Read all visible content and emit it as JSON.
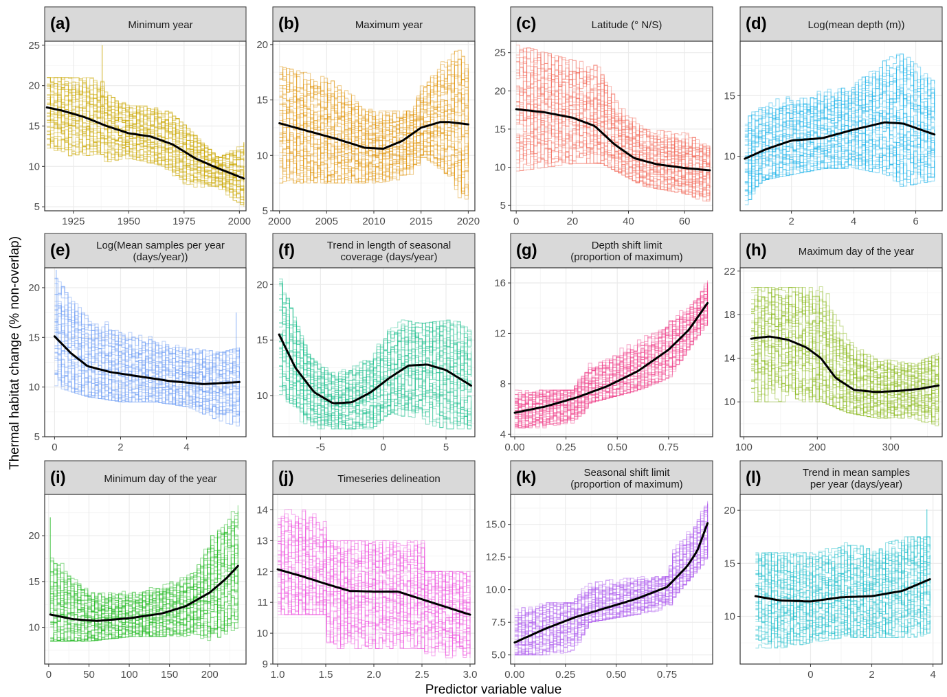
{
  "figure": {
    "ylabel": "Thermal habitat change (% non-overlap)",
    "xlabel": "Predictor variable value",
    "colors": {
      "strip_background": "#d9d9d9",
      "panel_border": "#333333",
      "gridline": "#ebebeb",
      "mean_line": "#000000"
    }
  },
  "chart_data": [
    {
      "type": "line",
      "letter": "(a)",
      "title_lines": [
        "Minimum year"
      ],
      "color": "#c9a600",
      "xlim": [
        1912,
        2003
      ],
      "ylim": [
        4.5,
        25.5
      ],
      "xticks": [
        1925,
        1950,
        1975,
        2000
      ],
      "xtick_labels": [
        "1925",
        "1950",
        "1975",
        "2000"
      ],
      "yticks": [
        5,
        10,
        15,
        20,
        25
      ],
      "ytick_labels": [
        "5",
        "10",
        "15",
        "20",
        "25"
      ],
      "mean_x": [
        1913,
        1920,
        1930,
        1940,
        1950,
        1960,
        1970,
        1980,
        1990,
        2002
      ],
      "mean_y": [
        17.3,
        16.9,
        16.1,
        15.0,
        14.1,
        13.7,
        12.7,
        11.0,
        9.8,
        8.5
      ],
      "band_x": [
        1913,
        1938,
        1939,
        1950,
        1965,
        1975,
        1990,
        2002
      ],
      "band_lo": [
        11.0,
        11.5,
        10.5,
        11.0,
        10.0,
        7.5,
        7.0,
        5.0
      ],
      "band_hi": [
        21.0,
        21.0,
        19.0,
        17.5,
        17.5,
        15.0,
        11.0,
        13.0
      ],
      "spikes": [
        {
          "x": 1938,
          "y": 25.0
        }
      ]
    },
    {
      "type": "line",
      "letter": "(b)",
      "title_lines": [
        "Maximum year"
      ],
      "color": "#e0950d",
      "xlim": [
        1999.3,
        2020.7
      ],
      "ylim": [
        5,
        20.3
      ],
      "xticks": [
        2000,
        2005,
        2010,
        2015,
        2020
      ],
      "xtick_labels": [
        "2000",
        "2005",
        "2010",
        "2015",
        "2020"
      ],
      "yticks": [
        5,
        10,
        15,
        20
      ],
      "ytick_labels": [
        "5",
        "10",
        "15",
        "20"
      ],
      "mean_x": [
        2000,
        2003,
        2006,
        2009,
        2011,
        2013,
        2015,
        2017,
        2018,
        2020
      ],
      "mean_y": [
        12.9,
        12.2,
        11.5,
        10.7,
        10.6,
        11.3,
        12.5,
        13.0,
        13.0,
        12.8
      ],
      "band_x": [
        2000,
        2005,
        2010,
        2014,
        2015,
        2018,
        2019,
        2020
      ],
      "band_lo": [
        7.5,
        7.5,
        7.5,
        8.0,
        10.0,
        8.0,
        6.0,
        5.5
      ],
      "band_hi": [
        18.0,
        17.0,
        14.0,
        14.0,
        16.5,
        19.3,
        19.5,
        17.5
      ],
      "spikes": []
    },
    {
      "type": "line",
      "letter": "(c)",
      "title_lines": [
        "Latitude (° N/S)"
      ],
      "color": "#f26b5b",
      "xlim": [
        -2,
        70
      ],
      "ylim": [
        4.3,
        26.5
      ],
      "xticks": [
        0,
        20,
        40,
        60
      ],
      "xtick_labels": [
        "0",
        "20",
        "40",
        "60"
      ],
      "yticks": [
        5,
        10,
        15,
        20,
        25
      ],
      "ytick_labels": [
        "5",
        "10",
        "15",
        "20",
        "25"
      ],
      "mean_x": [
        0,
        10,
        20,
        28,
        35,
        42,
        50,
        60,
        69
      ],
      "mean_y": [
        17.6,
        17.2,
        16.5,
        15.4,
        13.0,
        11.2,
        10.4,
        9.9,
        9.6
      ],
      "band_x": [
        0,
        20,
        30,
        35,
        45,
        60,
        69
      ],
      "band_lo": [
        9.5,
        10.5,
        10.5,
        9.5,
        7.5,
        6.5,
        5.0
      ],
      "band_hi": [
        26.0,
        24.0,
        23.5,
        19.0,
        15.0,
        14.5,
        12.5
      ],
      "spikes": []
    },
    {
      "type": "line",
      "letter": "(d)",
      "title_lines": [
        "Log(mean depth (m))"
      ],
      "color": "#1ab2e8",
      "xlim": [
        0.35,
        6.85
      ],
      "ylim": [
        5.5,
        19.5
      ],
      "xticks": [
        2,
        4,
        6
      ],
      "xtick_labels": [
        "2",
        "4",
        "6"
      ],
      "yticks": [
        10,
        15
      ],
      "ytick_labels": [
        "10",
        "15"
      ],
      "mean_x": [
        0.5,
        1.2,
        2.0,
        3.0,
        4.0,
        5.0,
        5.6,
        6.6
      ],
      "mean_y": [
        9.8,
        10.6,
        11.3,
        11.5,
        12.2,
        12.8,
        12.7,
        11.8
      ],
      "band_x": [
        0.5,
        1.0,
        2.0,
        3.0,
        4.0,
        5.0,
        5.5,
        6.6
      ],
      "band_lo": [
        6.0,
        8.0,
        8.5,
        9.0,
        9.0,
        8.5,
        7.5,
        8.0
      ],
      "band_hi": [
        13.0,
        14.5,
        15.0,
        15.5,
        16.0,
        18.0,
        18.7,
        16.0
      ],
      "spikes": []
    },
    {
      "type": "line",
      "letter": "(e)",
      "title_lines": [
        "Log(Mean samples per year",
        "(days/year))"
      ],
      "color": "#6e9ef4",
      "xlim": [
        -0.3,
        5.8
      ],
      "ylim": [
        5,
        22
      ],
      "xticks": [
        0,
        2,
        4
      ],
      "xtick_labels": [
        "0",
        "2",
        "4"
      ],
      "yticks": [
        5,
        10,
        15,
        20
      ],
      "ytick_labels": [
        "5",
        "10",
        "15",
        "20"
      ],
      "mean_x": [
        0,
        0.5,
        1.0,
        1.7,
        2.5,
        3.5,
        4.5,
        5.6
      ],
      "mean_y": [
        15.1,
        13.4,
        12.1,
        11.5,
        11.1,
        10.6,
        10.3,
        10.5
      ],
      "band_x": [
        0,
        0.5,
        1.0,
        2.0,
        3.0,
        4.0,
        5.0,
        5.6
      ],
      "band_lo": [
        10.0,
        9.5,
        9.0,
        8.5,
        8.5,
        8.0,
        6.5,
        6.0
      ],
      "band_hi": [
        21.0,
        19.0,
        17.5,
        16.0,
        15.0,
        14.0,
        13.5,
        14.0
      ],
      "spikes": [
        {
          "x": 0.05,
          "y": 21.8
        },
        {
          "x": 5.5,
          "y": 17.5
        }
      ]
    },
    {
      "type": "line",
      "letter": "(f)",
      "title_lines": [
        "Trend in length of seasonal",
        "coverage (days/year)"
      ],
      "color": "#1fbf8f",
      "xlim": [
        -8.8,
        7.3
      ],
      "ylim": [
        6.3,
        21.5
      ],
      "xticks": [
        -5,
        0,
        5
      ],
      "xtick_labels": [
        "-5",
        "0",
        "5"
      ],
      "yticks": [
        10,
        15,
        20
      ],
      "ytick_labels": [
        "10",
        "15",
        "20"
      ],
      "mean_x": [
        -8.3,
        -7,
        -5.5,
        -4.0,
        -2.5,
        -1.0,
        0.5,
        2.0,
        3.5,
        5.0,
        7.0
      ],
      "mean_y": [
        15.5,
        12.5,
        10.3,
        9.3,
        9.4,
        10.3,
        11.6,
        12.7,
        12.8,
        12.3,
        10.9
      ],
      "band_x": [
        -8.3,
        -7.5,
        -6.0,
        -4.0,
        -1.0,
        0.5,
        3.0,
        5.0,
        7.0
      ],
      "band_lo": [
        10.0,
        8.5,
        7.0,
        7.0,
        7.0,
        8.5,
        7.5,
        7.0,
        7.0
      ],
      "band_hi": [
        20.5,
        18.0,
        13.5,
        12.0,
        13.5,
        17.0,
        16.5,
        16.8,
        16.5
      ],
      "spikes": []
    },
    {
      "type": "line",
      "letter": "(g)",
      "title_lines": [
        "Depth shift limit",
        "(proportion of maximum)"
      ],
      "color": "#f0488e",
      "xlim": [
        -0.02,
        0.965
      ],
      "ylim": [
        3.8,
        17.2
      ],
      "xticks": [
        0.0,
        0.25,
        0.5,
        0.75
      ],
      "xtick_labels": [
        "0.00",
        "0.25",
        "0.50",
        "0.75"
      ],
      "yticks": [
        4,
        8,
        12,
        16
      ],
      "ytick_labels": [
        "4",
        "8",
        "12",
        "16"
      ],
      "mean_x": [
        0.0,
        0.15,
        0.3,
        0.45,
        0.6,
        0.75,
        0.85,
        0.94
      ],
      "mean_y": [
        5.7,
        6.2,
        6.9,
        7.8,
        9.0,
        10.7,
        12.3,
        14.4
      ],
      "band_x": [
        0.0,
        0.28,
        0.36,
        0.6,
        0.75,
        0.85,
        0.94
      ],
      "band_lo": [
        4.5,
        4.5,
        6.5,
        7.5,
        8.5,
        11.0,
        13.0
      ],
      "band_hi": [
        7.5,
        7.5,
        10.0,
        11.5,
        13.0,
        14.5,
        16.5
      ],
      "spikes": []
    },
    {
      "type": "line",
      "letter": "(h)",
      "title_lines": [
        "Maximum day of the year"
      ],
      "color": "#8ab81c",
      "xlim": [
        95,
        370
      ],
      "ylim": [
        6.8,
        22.3
      ],
      "xticks": [
        100,
        200,
        300
      ],
      "xtick_labels": [
        "100",
        "200",
        "300"
      ],
      "yticks": [
        10,
        14,
        18,
        22
      ],
      "ytick_labels": [
        "10",
        "14",
        "18",
        "22"
      ],
      "mean_x": [
        110,
        135,
        160,
        185,
        205,
        225,
        250,
        280,
        310,
        340,
        365
      ],
      "mean_y": [
        15.8,
        16.0,
        15.7,
        15.0,
        14.0,
        12.2,
        11.1,
        10.9,
        11.0,
        11.2,
        11.5
      ],
      "band_x": [
        110,
        200,
        205,
        240,
        280,
        330,
        365
      ],
      "band_lo": [
        10.0,
        10.0,
        10.0,
        9.0,
        8.5,
        8.5,
        7.5
      ],
      "band_hi": [
        20.5,
        20.5,
        21.5,
        16.0,
        14.0,
        13.5,
        14.5
      ],
      "spikes": []
    },
    {
      "type": "line",
      "letter": "(i)",
      "title_lines": [
        "Minimum day of the year"
      ],
      "color": "#1fb81f",
      "xlim": [
        -5,
        245
      ],
      "ylim": [
        6,
        24.5
      ],
      "xticks": [
        0,
        50,
        100,
        150,
        200
      ],
      "xtick_labels": [
        "0",
        "50",
        "100",
        "150",
        "200"
      ],
      "yticks": [
        10,
        15,
        20
      ],
      "ytick_labels": [
        "10",
        "15",
        "20"
      ],
      "mean_x": [
        2,
        30,
        60,
        100,
        140,
        170,
        200,
        220,
        235
      ],
      "mean_y": [
        11.4,
        10.9,
        10.7,
        11.0,
        11.5,
        12.3,
        13.8,
        15.3,
        16.7
      ],
      "band_x": [
        2,
        50,
        100,
        150,
        180,
        200,
        235
      ],
      "band_lo": [
        8.5,
        8.5,
        9.0,
        9.0,
        9.0,
        8.5,
        10.0
      ],
      "band_hi": [
        19.0,
        14.0,
        14.0,
        15.0,
        16.0,
        20.0,
        23.5
      ],
      "spikes": [
        {
          "x": 2,
          "y": 22.0
        }
      ]
    },
    {
      "type": "line",
      "letter": "(j)",
      "title_lines": [
        "Timeseries delineation"
      ],
      "color": "#ee55dd",
      "xlim": [
        0.95,
        3.05
      ],
      "ylim": [
        9,
        14.5
      ],
      "xticks": [
        1.0,
        1.5,
        2.0,
        2.5,
        3.0
      ],
      "xtick_labels": [
        "1.0",
        "1.5",
        "2.0",
        "2.5",
        "3.0"
      ],
      "yticks": [
        9,
        10,
        11,
        12,
        13,
        14
      ],
      "ytick_labels": [
        "9",
        "10",
        "11",
        "12",
        "13",
        "14"
      ],
      "mean_x": [
        1.0,
        1.25,
        1.5,
        1.75,
        2.0,
        2.25,
        2.5,
        2.75,
        3.0
      ],
      "mean_y": [
        12.07,
        11.85,
        11.6,
        11.37,
        11.35,
        11.35,
        11.1,
        10.85,
        10.6
      ],
      "band_x": [
        1.0,
        1.5,
        1.5,
        2.5,
        2.5,
        3.0
      ],
      "band_lo": [
        10.6,
        10.6,
        9.5,
        9.5,
        9.2,
        9.2
      ],
      "band_hi": [
        14.1,
        14.1,
        13.0,
        13.0,
        12.0,
        12.0
      ],
      "spikes": []
    },
    {
      "type": "line",
      "letter": "(k)",
      "title_lines": [
        "Seasonal shift limit",
        "(proportion of maximum)"
      ],
      "color": "#b060ee",
      "xlim": [
        -0.02,
        0.975
      ],
      "ylim": [
        4.3,
        17.3
      ],
      "xticks": [
        0.0,
        0.25,
        0.5,
        0.75
      ],
      "xtick_labels": [
        "0.00",
        "0.25",
        "0.50",
        "0.75"
      ],
      "yticks": [
        5.0,
        7.5,
        10.0,
        12.5,
        15.0
      ],
      "ytick_labels": [
        "5.0",
        "7.5",
        "10.0",
        "12.5",
        "15.0"
      ],
      "mean_x": [
        0.0,
        0.15,
        0.3,
        0.45,
        0.6,
        0.75,
        0.85,
        0.9,
        0.95
      ],
      "mean_y": [
        5.95,
        7.0,
        7.9,
        8.6,
        9.3,
        10.2,
        11.8,
        13.0,
        15.1
      ],
      "band_x": [
        0.0,
        0.28,
        0.36,
        0.75,
        0.78,
        0.95
      ],
      "band_lo": [
        5.0,
        5.0,
        7.5,
        8.5,
        9.5,
        12.5
      ],
      "band_hi": [
        9.0,
        9.0,
        11.0,
        11.0,
        13.5,
        16.8
      ],
      "spikes": []
    },
    {
      "type": "line",
      "letter": "(l)",
      "title_lines": [
        "Trend in mean samples",
        "per year (days/year)"
      ],
      "color": "#1abcc9",
      "xlim": [
        -2.3,
        4.3
      ],
      "ylim": [
        5.5,
        21.5
      ],
      "xticks": [
        0,
        2,
        4
      ],
      "xtick_labels": [
        "0",
        "2",
        "4"
      ],
      "yticks": [
        10,
        15,
        20
      ],
      "ytick_labels": [
        "10",
        "15",
        "20"
      ],
      "mean_x": [
        -1.8,
        -1.0,
        0,
        1.0,
        2.0,
        3.0,
        3.9
      ],
      "mean_y": [
        11.9,
        11.5,
        11.4,
        11.8,
        11.9,
        12.4,
        13.5
      ],
      "band_x": [
        -1.8,
        -1.0,
        0,
        1.0,
        2.0,
        3.0,
        3.9
      ],
      "band_lo": [
        7.0,
        7.0,
        7.5,
        8.0,
        8.0,
        8.0,
        8.0
      ],
      "band_hi": [
        16.0,
        16.0,
        16.0,
        17.0,
        16.5,
        17.5,
        17.5
      ],
      "spikes": [
        {
          "x": 3.8,
          "y": 20.1
        }
      ]
    }
  ]
}
